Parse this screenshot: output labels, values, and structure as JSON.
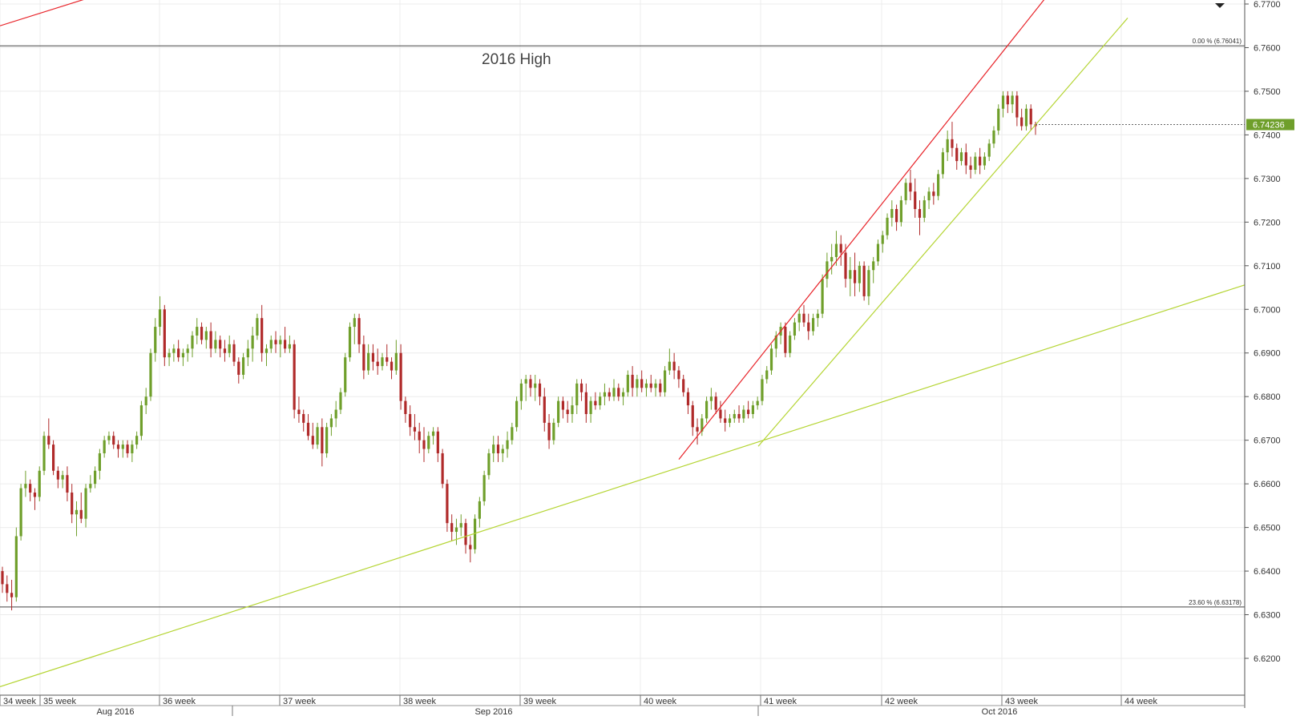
{
  "chart_data": {
    "type": "candlestick",
    "annotation": "2016 High",
    "price_axis": {
      "min": 6.61,
      "max": 6.77,
      "ticks": [
        "6.7700",
        "6.7600",
        "6.7500",
        "6.7400",
        "6.7300",
        "6.7200",
        "6.7100",
        "6.7000",
        "6.6900",
        "6.6800",
        "6.6700",
        "6.6600",
        "6.6500",
        "6.6400",
        "6.6300",
        "6.6200"
      ]
    },
    "week_labels": [
      "34 week",
      "35 week",
      "36 week",
      "37 week",
      "38 week",
      "39 week",
      "40 week",
      "41 week",
      "42 week",
      "43 week",
      "44 week"
    ],
    "month_labels": [
      "Aug 2016",
      "Sep 2016",
      "Oct 2016"
    ],
    "last_price": {
      "label": "6.74236",
      "value": 6.74236
    },
    "fib_levels": [
      {
        "label": "0.00 % (6.76041)",
        "value": 6.76041
      },
      {
        "label": "23.60 % (6.63178)",
        "value": 6.63178
      }
    ],
    "trendlines": [
      {
        "color": "#e8242a",
        "from": [
          0,
          6.765
        ],
        "to": [
          272,
          6.7807
        ]
      },
      {
        "color": "#e8242a",
        "from": [
          847,
          6.6656
        ],
        "to": [
          1333,
          6.778
        ]
      },
      {
        "color": "#b5d534",
        "from": [
          0,
          6.6135
        ],
        "to": [
          1553,
          6.7056
        ]
      },
      {
        "color": "#b5d534",
        "from": [
          946,
          6.6686
        ],
        "to": [
          1407,
          6.7668
        ]
      }
    ],
    "colors": {
      "up": "#6f9f2b",
      "down": "#b02a2a",
      "price_tag": "#6f9f2b"
    },
    "candles": [
      [
        6.64,
        6.641,
        6.635,
        6.637
      ],
      [
        6.637,
        6.639,
        6.633,
        6.635
      ],
      [
        6.635,
        6.638,
        6.631,
        6.634
      ],
      [
        6.634,
        6.65,
        6.633,
        6.648
      ],
      [
        6.648,
        6.66,
        6.647,
        6.659
      ],
      [
        6.659,
        6.663,
        6.657,
        6.66
      ],
      [
        6.66,
        6.661,
        6.656,
        6.658
      ],
      [
        6.658,
        6.659,
        6.654,
        6.657
      ],
      [
        6.657,
        6.664,
        6.656,
        6.663
      ],
      [
        6.663,
        6.672,
        6.662,
        6.671
      ],
      [
        6.671,
        6.675,
        6.668,
        6.669
      ],
      [
        6.669,
        6.67,
        6.662,
        6.663
      ],
      [
        6.663,
        6.664,
        6.659,
        6.661
      ],
      [
        6.661,
        6.663,
        6.659,
        6.662
      ],
      [
        6.662,
        6.664,
        6.656,
        6.658
      ],
      [
        6.658,
        6.66,
        6.651,
        6.653
      ],
      [
        6.653,
        6.656,
        6.648,
        6.654
      ],
      [
        6.654,
        6.658,
        6.651,
        6.652
      ],
      [
        6.652,
        6.66,
        6.65,
        6.659
      ],
      [
        6.659,
        6.662,
        6.658,
        6.66
      ],
      [
        6.66,
        6.664,
        6.659,
        6.663
      ],
      [
        6.663,
        6.668,
        6.661,
        6.667
      ],
      [
        6.667,
        6.671,
        6.666,
        6.67
      ],
      [
        6.67,
        6.672,
        6.669,
        6.671
      ],
      [
        6.671,
        6.672,
        6.668,
        6.669
      ],
      [
        6.669,
        6.67,
        6.666,
        6.668
      ],
      [
        6.668,
        6.67,
        6.666,
        6.669
      ],
      [
        6.669,
        6.67,
        6.666,
        6.667
      ],
      [
        6.667,
        6.67,
        6.665,
        6.669
      ],
      [
        6.669,
        6.672,
        6.668,
        6.671
      ],
      [
        6.671,
        6.679,
        6.67,
        6.678
      ],
      [
        6.678,
        6.682,
        6.676,
        6.68
      ],
      [
        6.68,
        6.691,
        6.679,
        6.69
      ],
      [
        6.69,
        6.698,
        6.688,
        6.696
      ],
      [
        6.696,
        6.703,
        6.694,
        6.7
      ],
      [
        6.7,
        6.701,
        6.687,
        6.689
      ],
      [
        6.689,
        6.691,
        6.687,
        6.69
      ],
      [
        6.69,
        6.692,
        6.688,
        6.691
      ],
      [
        6.691,
        6.693,
        6.688,
        6.689
      ],
      [
        6.689,
        6.691,
        6.687,
        6.69
      ],
      [
        6.69,
        6.692,
        6.688,
        6.691
      ],
      [
        6.691,
        6.695,
        6.689,
        6.694
      ],
      [
        6.694,
        6.698,
        6.692,
        6.696
      ],
      [
        6.696,
        6.697,
        6.692,
        6.693
      ],
      [
        6.693,
        6.696,
        6.691,
        6.695
      ],
      [
        6.695,
        6.697,
        6.689,
        6.691
      ],
      [
        6.691,
        6.695,
        6.69,
        6.693
      ],
      [
        6.693,
        6.694,
        6.689,
        6.691
      ],
      [
        6.691,
        6.693,
        6.688,
        6.69
      ],
      [
        6.69,
        6.694,
        6.689,
        6.692
      ],
      [
        6.692,
        6.693,
        6.687,
        6.688
      ],
      [
        6.688,
        6.689,
        6.683,
        6.685
      ],
      [
        6.685,
        6.69,
        6.684,
        6.689
      ],
      [
        6.689,
        6.693,
        6.687,
        6.691
      ],
      [
        6.691,
        6.696,
        6.688,
        6.694
      ],
      [
        6.694,
        6.699,
        6.693,
        6.698
      ],
      [
        6.698,
        6.701,
        6.688,
        6.69
      ],
      [
        6.69,
        6.692,
        6.687,
        6.691
      ],
      [
        6.691,
        6.694,
        6.69,
        6.693
      ],
      [
        6.693,
        6.695,
        6.69,
        6.692
      ],
      [
        6.692,
        6.694,
        6.689,
        6.693
      ],
      [
        6.693,
        6.696,
        6.69,
        6.691
      ],
      [
        6.691,
        6.694,
        6.69,
        6.692
      ],
      [
        6.692,
        6.693,
        6.675,
        6.677
      ],
      [
        6.677,
        6.68,
        6.674,
        6.676
      ],
      [
        6.676,
        6.677,
        6.672,
        6.674
      ],
      [
        6.674,
        6.676,
        6.67,
        6.671
      ],
      [
        6.671,
        6.674,
        6.668,
        6.669
      ],
      [
        6.669,
        6.674,
        6.668,
        6.673
      ],
      [
        6.673,
        6.675,
        6.664,
        6.667
      ],
      [
        6.667,
        6.674,
        6.666,
        6.673
      ],
      [
        6.673,
        6.676,
        6.671,
        6.675
      ],
      [
        6.675,
        6.679,
        6.673,
        6.677
      ],
      [
        6.677,
        6.682,
        6.676,
        6.681
      ],
      [
        6.681,
        6.69,
        6.68,
        6.689
      ],
      [
        6.689,
        6.697,
        6.688,
        6.696
      ],
      [
        6.696,
        6.699,
        6.692,
        6.698
      ],
      [
        6.698,
        6.699,
        6.69,
        6.692
      ],
      [
        6.692,
        6.694,
        6.684,
        6.686
      ],
      [
        6.686,
        6.692,
        6.685,
        6.69
      ],
      [
        6.69,
        6.692,
        6.686,
        6.688
      ],
      [
        6.688,
        6.691,
        6.685,
        6.687
      ],
      [
        6.687,
        6.69,
        6.686,
        6.689
      ],
      [
        6.689,
        6.692,
        6.687,
        6.688
      ],
      [
        6.688,
        6.689,
        6.684,
        6.686
      ],
      [
        6.686,
        6.693,
        6.685,
        6.69
      ],
      [
        6.69,
        6.692,
        6.677,
        6.679
      ],
      [
        6.679,
        6.68,
        6.674,
        6.676
      ],
      [
        6.676,
        6.678,
        6.671,
        6.673
      ],
      [
        6.673,
        6.676,
        6.67,
        6.672
      ],
      [
        6.672,
        6.674,
        6.667,
        6.67
      ],
      [
        6.67,
        6.673,
        6.665,
        6.668
      ],
      [
        6.668,
        6.672,
        6.667,
        6.671
      ],
      [
        6.671,
        6.673,
        6.669,
        6.672
      ],
      [
        6.672,
        6.673,
        6.665,
        6.667
      ],
      [
        6.667,
        6.668,
        6.659,
        6.66
      ],
      [
        6.66,
        6.661,
        6.649,
        6.651
      ],
      [
        6.651,
        6.653,
        6.647,
        6.649
      ],
      [
        6.649,
        6.652,
        6.646,
        6.65
      ],
      [
        6.65,
        6.653,
        6.648,
        6.651
      ],
      [
        6.651,
        6.652,
        6.644,
        6.646
      ],
      [
        6.646,
        6.648,
        6.642,
        6.645
      ],
      [
        6.645,
        6.653,
        6.644,
        6.652
      ],
      [
        6.652,
        6.657,
        6.65,
        6.656
      ],
      [
        6.656,
        6.663,
        6.655,
        6.662
      ],
      [
        6.662,
        6.668,
        6.661,
        6.667
      ],
      [
        6.667,
        6.671,
        6.665,
        6.669
      ],
      [
        6.669,
        6.671,
        6.665,
        6.667
      ],
      [
        6.667,
        6.669,
        6.665,
        6.668
      ],
      [
        6.668,
        6.672,
        6.666,
        6.67
      ],
      [
        6.67,
        6.674,
        6.669,
        6.673
      ],
      [
        6.673,
        6.68,
        6.672,
        6.679
      ],
      [
        6.679,
        6.684,
        6.677,
        6.683
      ],
      [
        6.683,
        6.685,
        6.679,
        6.684
      ],
      [
        6.684,
        6.685,
        6.68,
        6.682
      ],
      [
        6.682,
        6.685,
        6.679,
        6.683
      ],
      [
        6.683,
        6.684,
        6.678,
        6.68
      ],
      [
        6.68,
        6.682,
        6.672,
        6.674
      ],
      [
        6.674,
        6.676,
        6.668,
        6.67
      ],
      [
        6.67,
        6.675,
        6.669,
        6.674
      ],
      [
        6.674,
        6.68,
        6.673,
        6.679
      ],
      [
        6.679,
        6.68,
        6.675,
        6.677
      ],
      [
        6.677,
        6.679,
        6.674,
        6.676
      ],
      [
        6.676,
        6.68,
        6.674,
        6.678
      ],
      [
        6.678,
        6.684,
        6.676,
        6.683
      ],
      [
        6.683,
        6.684,
        6.679,
        6.681
      ],
      [
        6.681,
        6.683,
        6.674,
        6.676
      ],
      [
        6.676,
        6.68,
        6.674,
        6.679
      ],
      [
        6.679,
        6.681,
        6.677,
        6.678
      ],
      [
        6.678,
        6.681,
        6.677,
        6.68
      ],
      [
        6.68,
        6.683,
        6.678,
        6.681
      ],
      [
        6.681,
        6.682,
        6.679,
        6.68
      ],
      [
        6.68,
        6.684,
        6.679,
        6.682
      ],
      [
        6.682,
        6.683,
        6.679,
        6.68
      ],
      [
        6.68,
        6.682,
        6.678,
        6.681
      ],
      [
        6.681,
        6.686,
        6.68,
        6.685
      ],
      [
        6.685,
        6.687,
        6.68,
        6.682
      ],
      [
        6.682,
        6.685,
        6.68,
        6.684
      ],
      [
        6.684,
        6.686,
        6.681,
        6.682
      ],
      [
        6.682,
        6.684,
        6.68,
        6.683
      ],
      [
        6.683,
        6.685,
        6.681,
        6.682
      ],
      [
        6.682,
        6.684,
        6.68,
        6.683
      ],
      [
        6.683,
        6.684,
        6.68,
        6.681
      ],
      [
        6.681,
        6.687,
        6.68,
        6.686
      ],
      [
        6.686,
        6.691,
        6.685,
        6.688
      ],
      [
        6.688,
        6.69,
        6.684,
        6.686
      ],
      [
        6.686,
        6.687,
        6.682,
        6.684
      ],
      [
        6.684,
        6.685,
        6.68,
        6.681
      ],
      [
        6.681,
        6.682,
        6.676,
        6.678
      ],
      [
        6.678,
        6.679,
        6.671,
        6.673
      ],
      [
        6.673,
        6.675,
        6.669,
        6.672
      ],
      [
        6.672,
        6.676,
        6.671,
        6.675
      ],
      [
        6.675,
        6.68,
        6.674,
        6.679
      ],
      [
        6.679,
        6.682,
        6.677,
        6.68
      ],
      [
        6.68,
        6.681,
        6.676,
        6.677
      ],
      [
        6.677,
        6.679,
        6.674,
        6.675
      ],
      [
        6.675,
        6.677,
        6.672,
        6.674
      ],
      [
        6.674,
        6.676,
        6.673,
        6.675
      ],
      [
        6.675,
        6.677,
        6.674,
        6.676
      ],
      [
        6.676,
        6.678,
        6.674,
        6.675
      ],
      [
        6.675,
        6.678,
        6.674,
        6.677
      ],
      [
        6.677,
        6.679,
        6.675,
        6.676
      ],
      [
        6.676,
        6.679,
        6.675,
        6.678
      ],
      [
        6.678,
        6.68,
        6.677,
        6.679
      ],
      [
        6.679,
        6.685,
        6.678,
        6.684
      ],
      [
        6.684,
        6.687,
        6.683,
        6.686
      ],
      [
        6.686,
        6.692,
        6.685,
        6.691
      ],
      [
        6.691,
        6.695,
        6.689,
        6.694
      ],
      [
        6.694,
        6.697,
        6.692,
        6.696
      ],
      [
        6.696,
        6.697,
        6.689,
        6.69
      ],
      [
        6.69,
        6.695,
        6.689,
        6.694
      ],
      [
        6.694,
        6.698,
        6.693,
        6.697
      ],
      [
        6.697,
        6.7,
        6.695,
        6.699
      ],
      [
        6.699,
        6.701,
        6.696,
        6.697
      ],
      [
        6.697,
        6.699,
        6.693,
        6.695
      ],
      [
        6.695,
        6.699,
        6.694,
        6.698
      ],
      [
        6.698,
        6.7,
        6.696,
        6.699
      ],
      [
        6.699,
        6.708,
        6.698,
        6.707
      ],
      [
        6.707,
        6.713,
        6.705,
        6.711
      ],
      [
        6.711,
        6.715,
        6.708,
        6.712
      ],
      [
        6.712,
        6.718,
        6.71,
        6.715
      ],
      [
        6.715,
        6.717,
        6.71,
        6.713
      ],
      [
        6.713,
        6.715,
        6.705,
        6.707
      ],
      [
        6.707,
        6.712,
        6.703,
        6.709
      ],
      [
        6.709,
        6.713,
        6.703,
        6.706
      ],
      [
        6.706,
        6.711,
        6.704,
        6.71
      ],
      [
        6.71,
        6.711,
        6.702,
        6.703
      ],
      [
        6.703,
        6.71,
        6.701,
        6.709
      ],
      [
        6.709,
        6.712,
        6.706,
        6.711
      ],
      [
        6.711,
        6.716,
        6.71,
        6.715
      ],
      [
        6.715,
        6.718,
        6.713,
        6.717
      ],
      [
        6.717,
        6.722,
        6.716,
        6.721
      ],
      [
        6.721,
        6.725,
        6.719,
        6.723
      ],
      [
        6.723,
        6.724,
        6.718,
        6.72
      ],
      [
        6.72,
        6.726,
        6.719,
        6.725
      ],
      [
        6.725,
        6.73,
        6.724,
        6.729
      ],
      [
        6.729,
        6.732,
        6.725,
        6.727
      ],
      [
        6.727,
        6.73,
        6.721,
        6.723
      ],
      [
        6.723,
        6.725,
        6.717,
        6.721
      ],
      [
        6.721,
        6.726,
        6.72,
        6.725
      ],
      [
        6.725,
        6.728,
        6.723,
        6.727
      ],
      [
        6.727,
        6.729,
        6.724,
        6.726
      ],
      [
        6.726,
        6.732,
        6.725,
        6.731
      ],
      [
        6.731,
        6.737,
        6.73,
        6.736
      ],
      [
        6.736,
        6.741,
        6.734,
        6.739
      ],
      [
        6.739,
        6.743,
        6.735,
        6.737
      ],
      [
        6.737,
        6.738,
        6.732,
        6.734
      ],
      [
        6.734,
        6.737,
        6.733,
        6.736
      ],
      [
        6.736,
        6.738,
        6.731,
        6.733
      ],
      [
        6.733,
        6.735,
        6.73,
        6.732
      ],
      [
        6.732,
        6.736,
        6.731,
        6.735
      ],
      [
        6.735,
        6.737,
        6.731,
        6.733
      ],
      [
        6.733,
        6.736,
        6.732,
        6.735
      ],
      [
        6.735,
        6.739,
        6.734,
        6.738
      ],
      [
        6.738,
        6.742,
        6.737,
        6.741
      ],
      [
        6.741,
        6.747,
        6.74,
        6.746
      ],
      [
        6.746,
        6.75,
        6.744,
        6.749
      ],
      [
        6.749,
        6.75,
        6.745,
        6.747
      ],
      [
        6.747,
        6.75,
        6.745,
        6.749
      ],
      [
        6.749,
        6.75,
        6.742,
        6.744
      ],
      [
        6.744,
        6.746,
        6.741,
        6.742
      ],
      [
        6.742,
        6.747,
        6.741,
        6.746
      ],
      [
        6.746,
        6.747,
        6.741,
        6.7424
      ],
      [
        6.7424,
        6.743,
        6.74,
        6.742
      ]
    ]
  }
}
